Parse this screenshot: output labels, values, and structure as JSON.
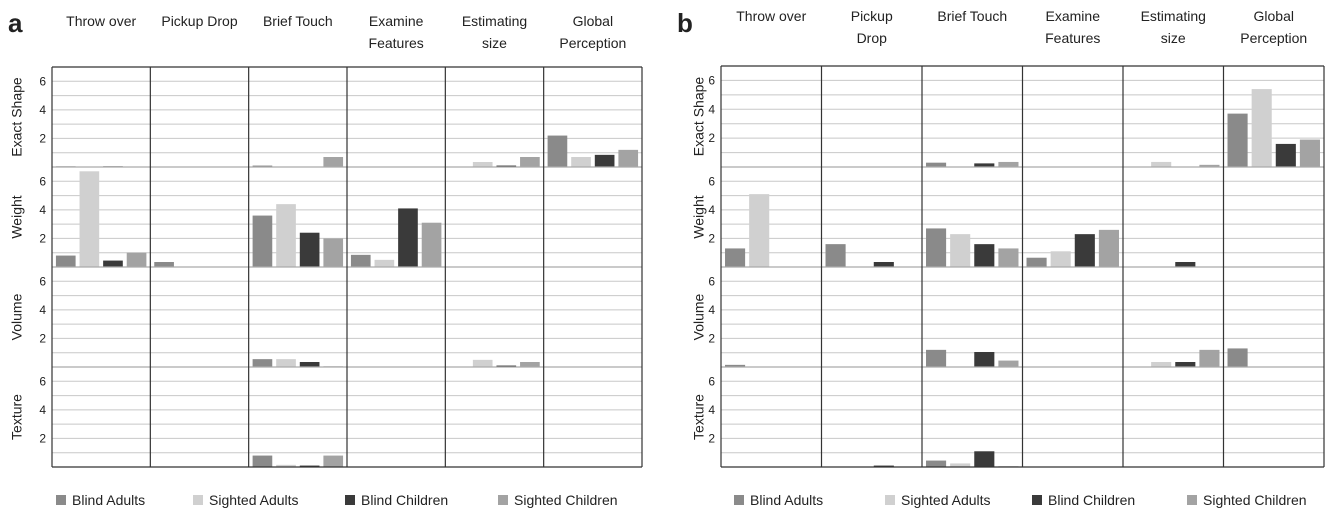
{
  "colors": {
    "blind_adults": "#8a8a8a",
    "sighted_adults": "#d0d0d0",
    "blind_children": "#3a3a3a",
    "sighted_children": "#a3a3a3",
    "grid": "#c8c8c8",
    "frame": "#333333",
    "text": "#222222"
  },
  "legend": [
    {
      "label": "Blind Adults",
      "color_key": "blind_adults"
    },
    {
      "label": "Sighted Adults",
      "color_key": "sighted_adults"
    },
    {
      "label": "Blind Children",
      "color_key": "blind_children"
    },
    {
      "label": "Sighted Children",
      "color_key": "sighted_children"
    }
  ],
  "chart_data": [
    {
      "type": "bar",
      "panel_label": "a",
      "columns": [
        [
          "Throw over"
        ],
        [
          "Pickup Drop"
        ],
        [
          "Brief Touch"
        ],
        [
          "Examine",
          "Features"
        ],
        [
          "Estimating",
          "size"
        ],
        [
          "Global",
          "Perception"
        ]
      ],
      "rows": [
        "Exact Shape",
        "Weight",
        "Volume",
        "Texture"
      ],
      "series": [
        "Blind Adults",
        "Sighted Adults",
        "Blind Children",
        "Sighted Children"
      ],
      "yticks": [
        2,
        4,
        6
      ],
      "ylim": [
        0,
        7
      ],
      "grid": true,
      "legend_position": "bottom",
      "values": [
        [
          [
            0.05,
            0,
            0.05,
            0
          ],
          [
            0,
            0,
            0,
            0
          ],
          [
            0.1,
            0,
            0,
            0.7
          ],
          [
            0,
            0,
            0,
            0
          ],
          [
            0,
            0.35,
            0.1,
            0.7
          ],
          [
            2.2,
            0.7,
            0.85,
            1.2
          ]
        ],
        [
          [
            0.8,
            6.7,
            0.45,
            1.0
          ],
          [
            0.35,
            0,
            0,
            0
          ],
          [
            3.6,
            4.4,
            2.4,
            2.0
          ],
          [
            0.85,
            0.5,
            4.1,
            3.1
          ],
          [
            0,
            0,
            0,
            0
          ],
          [
            0,
            0,
            0,
            0
          ]
        ],
        [
          [
            0,
            0,
            0,
            0
          ],
          [
            0,
            0,
            0,
            0
          ],
          [
            0.55,
            0.55,
            0.35,
            0.05
          ],
          [
            0,
            0,
            0,
            0
          ],
          [
            0,
            0.5,
            0.1,
            0.35
          ],
          [
            0,
            0,
            0,
            0
          ]
        ],
        [
          [
            0,
            0,
            0,
            0
          ],
          [
            0,
            0,
            0,
            0
          ],
          [
            0.8,
            0.15,
            0.1,
            0.8
          ],
          [
            0,
            0,
            0,
            0
          ],
          [
            0,
            0,
            0,
            0
          ],
          [
            0,
            0,
            0,
            0
          ]
        ]
      ]
    },
    {
      "type": "bar",
      "panel_label": "b",
      "columns": [
        [
          "Throw over"
        ],
        [
          "Pickup",
          "Drop"
        ],
        [
          "Brief Touch"
        ],
        [
          "Examine",
          "Features"
        ],
        [
          "Estimating",
          "size"
        ],
        [
          "Global",
          "Perception"
        ]
      ],
      "rows": [
        "Exact Shape",
        "Weight",
        "Volume",
        "Texture"
      ],
      "series": [
        "Blind Adults",
        "Sighted Adults",
        "Blind Children",
        "Sighted Children"
      ],
      "yticks": [
        2,
        4,
        6
      ],
      "ylim": [
        0,
        7
      ],
      "grid": true,
      "legend_position": "bottom",
      "values": [
        [
          [
            0,
            0,
            0,
            0
          ],
          [
            0,
            0,
            0,
            0
          ],
          [
            0.3,
            0,
            0.25,
            0.35
          ],
          [
            0,
            0,
            0,
            0
          ],
          [
            0,
            0.35,
            0,
            0.15
          ],
          [
            3.7,
            5.4,
            1.6,
            1.9
          ]
        ],
        [
          [
            1.3,
            5.1,
            0,
            0
          ],
          [
            1.6,
            0,
            0.35,
            0
          ],
          [
            2.7,
            2.3,
            1.6,
            1.3
          ],
          [
            0.65,
            1.1,
            2.3,
            2.6
          ],
          [
            0,
            0,
            0.35,
            0
          ],
          [
            0,
            0,
            0,
            0
          ]
        ],
        [
          [
            0.15,
            0,
            0,
            0
          ],
          [
            0,
            0,
            0,
            0
          ],
          [
            1.2,
            0,
            1.05,
            0.45
          ],
          [
            0,
            0,
            0,
            0
          ],
          [
            0,
            0.35,
            0.35,
            1.2
          ],
          [
            1.3,
            0,
            0,
            0
          ]
        ],
        [
          [
            0,
            0,
            0,
            0
          ],
          [
            0,
            0,
            0.1,
            0
          ],
          [
            0.45,
            0.25,
            1.1,
            0.05
          ],
          [
            0,
            0,
            0,
            0
          ],
          [
            0,
            0,
            0,
            0
          ],
          [
            0,
            0,
            0,
            0
          ]
        ]
      ]
    }
  ]
}
